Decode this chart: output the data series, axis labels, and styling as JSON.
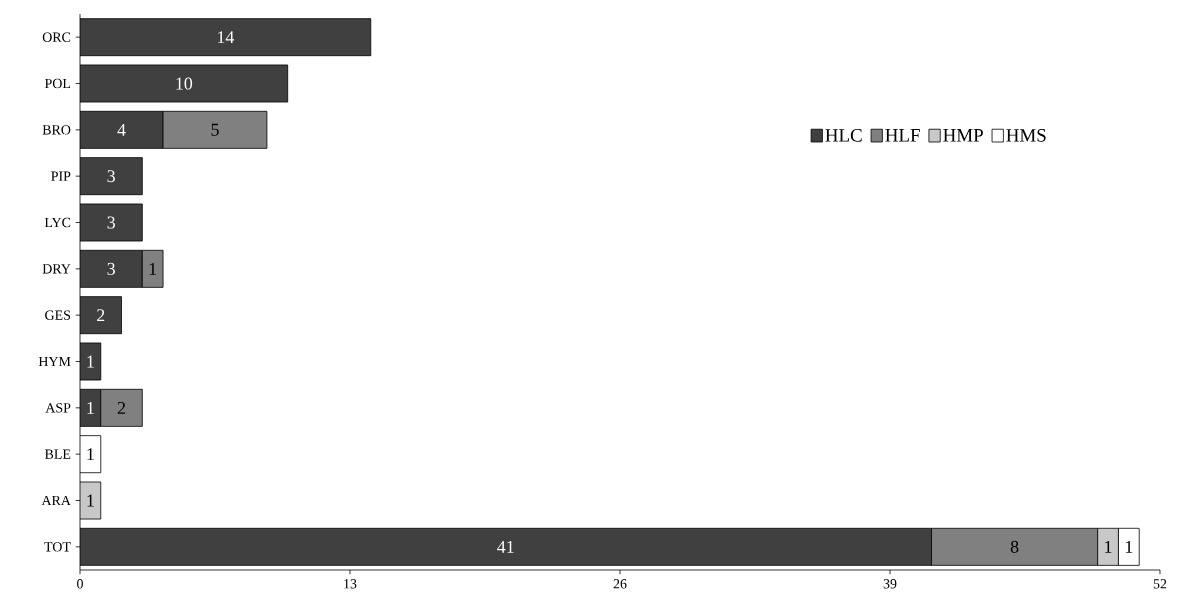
{
  "chart_data": {
    "type": "bar",
    "orientation": "horizontal",
    "stacked": true,
    "data_labels": true,
    "legend": "right",
    "grid": false,
    "categories": [
      "ORC",
      "POL",
      "BRO",
      "PIP",
      "LYC",
      "DRY",
      "GES",
      "HYM",
      "ASP",
      "BLE",
      "ARA",
      "TOT"
    ],
    "xlim": [
      0,
      52
    ],
    "xticks": [
      0,
      13,
      26,
      39,
      52
    ],
    "series": [
      {
        "name": "HLC",
        "color": "#404040",
        "values": [
          14,
          10,
          4,
          3,
          3,
          3,
          2,
          1,
          1,
          null,
          null,
          41
        ]
      },
      {
        "name": "HLF",
        "color": "#808080",
        "values": [
          null,
          null,
          5,
          null,
          null,
          1,
          null,
          null,
          2,
          null,
          null,
          8
        ]
      },
      {
        "name": "HMP",
        "color": "#c8c8c8",
        "values": [
          null,
          null,
          null,
          null,
          null,
          null,
          null,
          null,
          null,
          null,
          1,
          1
        ]
      },
      {
        "name": "HMS",
        "color": "#ffffff",
        "values": [
          null,
          null,
          null,
          null,
          null,
          null,
          null,
          null,
          null,
          1,
          null,
          1
        ]
      }
    ]
  }
}
